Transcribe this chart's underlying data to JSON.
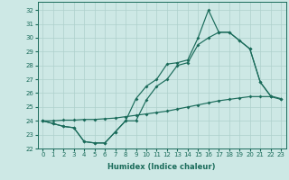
{
  "xlabel": "Humidex (Indice chaleur)",
  "bg_color": "#cde8e5",
  "grid_color": "#aed0cc",
  "line_color": "#1a6b5a",
  "xlim": [
    -0.5,
    23.5
  ],
  "ylim": [
    22,
    32.6
  ],
  "yticks": [
    22,
    23,
    24,
    25,
    26,
    27,
    28,
    29,
    30,
    31,
    32
  ],
  "xticks": [
    0,
    1,
    2,
    3,
    4,
    5,
    6,
    7,
    8,
    9,
    10,
    11,
    12,
    13,
    14,
    15,
    16,
    17,
    18,
    19,
    20,
    21,
    22,
    23
  ],
  "line_spike_x": [
    0,
    1,
    2,
    3,
    4,
    5,
    6,
    7,
    8,
    9,
    10,
    11,
    12,
    13,
    14,
    15,
    16,
    17,
    18,
    19,
    20,
    21,
    22
  ],
  "line_spike_y": [
    24.0,
    23.8,
    23.6,
    23.5,
    22.5,
    22.4,
    22.4,
    23.2,
    24.0,
    25.6,
    26.5,
    27.0,
    28.1,
    28.2,
    28.4,
    30.0,
    32.0,
    30.4,
    30.4,
    29.8,
    29.2,
    26.8,
    25.8
  ],
  "line_lower_x": [
    0,
    1,
    2,
    3,
    4,
    5,
    6,
    7,
    8,
    9,
    10,
    11,
    12,
    13,
    14,
    15,
    16,
    17,
    18,
    19,
    20,
    21,
    22,
    23
  ],
  "line_lower_y": [
    24.0,
    23.8,
    23.6,
    23.5,
    22.5,
    22.4,
    22.4,
    23.2,
    24.0,
    24.0,
    25.5,
    26.5,
    27.0,
    28.0,
    28.2,
    29.5,
    30.0,
    30.4,
    30.4,
    29.8,
    29.2,
    26.8,
    25.8,
    25.6
  ],
  "line_avg_x": [
    0,
    1,
    2,
    3,
    4,
    5,
    6,
    7,
    8,
    9,
    10,
    11,
    12,
    13,
    14,
    15,
    16,
    17,
    18,
    19,
    20,
    21,
    22,
    23
  ],
  "line_avg_y": [
    24.0,
    24.0,
    24.05,
    24.05,
    24.1,
    24.1,
    24.15,
    24.2,
    24.3,
    24.4,
    24.5,
    24.6,
    24.7,
    24.85,
    25.0,
    25.15,
    25.3,
    25.45,
    25.55,
    25.65,
    25.75,
    25.75,
    25.75,
    25.55
  ]
}
